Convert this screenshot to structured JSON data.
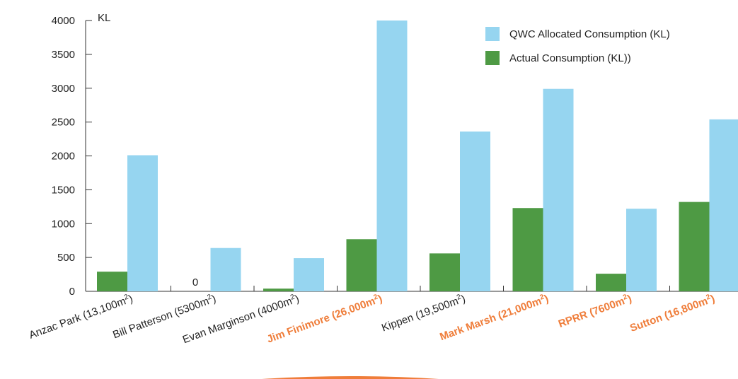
{
  "chart_data": {
    "type": "bar",
    "ylabel": "KL",
    "ylim": [
      0,
      4000
    ],
    "yticks": [
      0,
      500,
      1000,
      1500,
      2000,
      2500,
      3000,
      3500,
      4000
    ],
    "legend_position": "top-right",
    "categories": [
      {
        "name": "Anzac Park (13,100m",
        "sup": "2",
        "close": ")",
        "highlight": false
      },
      {
        "name": "Bill Patterson (5300m",
        "sup": "2",
        "close": ")",
        "highlight": false
      },
      {
        "name": "Evan Marginson (4000m",
        "sup": "2",
        "close": ")",
        "highlight": false
      },
      {
        "name": "Jim Finimore (26,000m",
        "sup": "2",
        "close": ")",
        "highlight": true
      },
      {
        "name": "Kippen (19,500m",
        "sup": "2",
        "close": ")",
        "highlight": false
      },
      {
        "name": "Mark Marsh (21,000m",
        "sup": "2",
        "close": ")",
        "highlight": true
      },
      {
        "name": "RPRR (7600m",
        "sup": "2",
        "close": ")",
        "highlight": true
      },
      {
        "name": "Sutton (16,800m",
        "sup": "2",
        "close": ")",
        "highlight": true
      }
    ],
    "series": [
      {
        "name": "Actual Consumption (KL))",
        "color": "#4e9a44",
        "values": [
          290,
          0,
          40,
          770,
          560,
          1230,
          260,
          1320
        ]
      },
      {
        "name": "QWC Allocated Consumption (KL)",
        "color": "#96d5f0",
        "values": [
          2010,
          640,
          490,
          4000,
          2360,
          2990,
          1220,
          2540
        ]
      }
    ],
    "legend_order": [
      1,
      0
    ],
    "annotations": [
      {
        "category_index": 1,
        "series_index": 0,
        "text": "0"
      }
    ],
    "highlight_color": "#ef7d3a"
  }
}
